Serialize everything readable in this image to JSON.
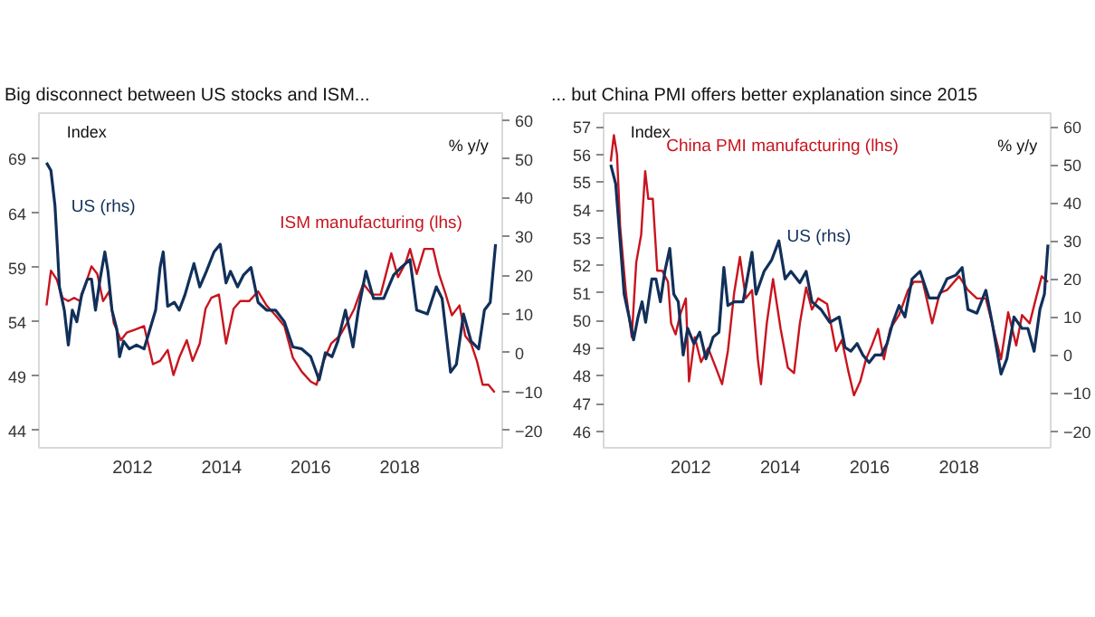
{
  "chart_data": [
    {
      "type": "line",
      "title": "Big disconnect between US stocks and ISM...",
      "ylabel": "Index",
      "y2label": "% y/y",
      "xlim": [
        2009.9,
        2020.3
      ],
      "xticks": [
        2012,
        2014,
        2016,
        2018
      ],
      "ylim": [
        42.4,
        73.2
      ],
      "yticks": [
        44,
        49,
        54,
        59,
        64,
        69
      ],
      "y2lim": [
        -24.5,
        61.8
      ],
      "y2ticks": [
        -20,
        -10,
        0,
        10,
        20,
        30,
        40,
        50,
        60
      ],
      "series": [
        {
          "name": "ISM manufacturing (lhs)",
          "color": "#c8141e",
          "x": [
            2010.07,
            2010.17,
            2010.3,
            2010.43,
            2010.56,
            2010.69,
            2010.82,
            2010.95,
            2011.08,
            2011.21,
            2011.34,
            2011.48,
            2011.58,
            2011.74,
            2011.87,
            2012.07,
            2012.26,
            2012.46,
            2012.62,
            2012.79,
            2012.92,
            2013.05,
            2013.22,
            2013.35,
            2013.51,
            2013.64,
            2013.77,
            2013.94,
            2014.1,
            2014.27,
            2014.42,
            2014.62,
            2014.82,
            2015.01,
            2015.21,
            2015.41,
            2015.6,
            2015.8,
            2016.0,
            2016.13,
            2016.29,
            2016.46,
            2016.65,
            2016.78,
            2016.98,
            2017.18,
            2017.37,
            2017.57,
            2017.81,
            2017.96,
            2018.13,
            2018.23,
            2018.38,
            2018.55,
            2018.75,
            2018.88,
            2019.01,
            2019.17,
            2019.34,
            2019.47,
            2019.6,
            2019.73,
            2019.86,
            2019.99,
            2020.13
          ],
          "values": [
            55.5,
            58.7,
            57.9,
            56.2,
            55.9,
            56.2,
            55.9,
            57.5,
            59.1,
            58.4,
            55.9,
            56.8,
            53.9,
            52.3,
            53.0,
            53.3,
            53.6,
            50.1,
            50.4,
            51.4,
            49.1,
            50.7,
            52.3,
            50.4,
            52.0,
            55.2,
            56.2,
            56.5,
            52.0,
            55.2,
            55.9,
            55.9,
            56.8,
            55.5,
            54.6,
            53.6,
            50.7,
            49.4,
            48.5,
            48.2,
            50.4,
            52.0,
            52.7,
            53.6,
            55.2,
            57.5,
            56.5,
            56.5,
            60.3,
            58.1,
            59.4,
            60.7,
            58.4,
            60.7,
            60.7,
            58.4,
            56.8,
            54.6,
            55.5,
            52.7,
            52.0,
            50.4,
            48.2,
            48.2,
            47.5
          ]
        },
        {
          "name": "US (rhs)",
          "color": "#11305a",
          "axis": "y2",
          "x": [
            2010.07,
            2010.17,
            2010.26,
            2010.32,
            2010.36,
            2010.47,
            2010.56,
            2010.65,
            2010.75,
            2010.86,
            2010.99,
            2011.08,
            2011.17,
            2011.28,
            2011.38,
            2011.45,
            2011.54,
            2011.65,
            2011.71,
            2011.8,
            2011.93,
            2012.09,
            2012.26,
            2012.39,
            2012.52,
            2012.62,
            2012.69,
            2012.79,
            2012.94,
            2013.05,
            2013.18,
            2013.38,
            2013.51,
            2013.66,
            2013.83,
            2013.97,
            2014.1,
            2014.2,
            2014.36,
            2014.49,
            2014.66,
            2014.82,
            2015.01,
            2015.21,
            2015.41,
            2015.6,
            2015.8,
            2016.0,
            2016.19,
            2016.33,
            2016.48,
            2016.61,
            2016.78,
            2016.95,
            2017.07,
            2017.24,
            2017.41,
            2017.64,
            2017.86,
            2018.03,
            2018.23,
            2018.38,
            2018.62,
            2018.82,
            2018.95,
            2019.14,
            2019.27,
            2019.43,
            2019.6,
            2019.77,
            2019.9,
            2020.03,
            2020.15
          ],
          "values": [
            49,
            47,
            38,
            26,
            17,
            11,
            2,
            11,
            8,
            15,
            19,
            19,
            11,
            19.5,
            26,
            21,
            11,
            6,
            -1,
            3,
            1,
            2,
            1,
            6,
            11,
            22,
            26,
            12,
            13,
            11,
            15,
            23,
            17,
            21,
            26,
            28,
            18,
            21,
            17,
            20,
            22,
            13,
            11,
            11,
            8,
            1.5,
            1,
            -1,
            -7,
            0,
            -1,
            3,
            11,
            1.5,
            11,
            21,
            14,
            14,
            20,
            22,
            24,
            11,
            10,
            17,
            14,
            -5,
            -3,
            10,
            3,
            1,
            11,
            13,
            28
          ]
        }
      ]
    },
    {
      "type": "line",
      "title": "... but China PMI offers better explanation since 2015",
      "ylabel": "Index",
      "y2label": "% y/y",
      "xlim": [
        2010.05,
        2020.05
      ],
      "xticks": [
        2012,
        2014,
        2016,
        2018
      ],
      "ylim": [
        45.4,
        57.5
      ],
      "yticks": [
        46,
        47,
        48,
        49,
        50,
        51,
        52,
        53,
        54,
        55,
        56,
        57
      ],
      "y2lim": [
        -24.4,
        63.6
      ],
      "y2ticks": [
        -20,
        -10,
        0,
        10,
        20,
        30,
        40,
        50,
        60
      ],
      "series": [
        {
          "name": "China PMI manufacturing (lhs)",
          "color": "#c8141e",
          "x": [
            2010.21,
            2010.28,
            2010.35,
            2010.42,
            2010.55,
            2010.68,
            2010.78,
            2010.89,
            2010.98,
            2011.05,
            2011.15,
            2011.25,
            2011.36,
            2011.49,
            2011.56,
            2011.66,
            2011.76,
            2011.89,
            2011.96,
            2012.09,
            2012.23,
            2012.39,
            2012.56,
            2012.7,
            2012.83,
            2012.97,
            2013.1,
            2013.23,
            2013.37,
            2013.5,
            2013.57,
            2013.7,
            2013.84,
            2014.01,
            2014.17,
            2014.31,
            2014.44,
            2014.58,
            2014.71,
            2014.85,
            2015.05,
            2015.25,
            2015.38,
            2015.52,
            2015.65,
            2015.79,
            2015.92,
            2016.05,
            2016.19,
            2016.32,
            2016.46,
            2016.66,
            2016.86,
            2016.99,
            2017.19,
            2017.4,
            2017.57,
            2017.73,
            2018.0,
            2018.2,
            2018.4,
            2018.6,
            2018.74,
            2018.94,
            2019.1,
            2019.28,
            2019.41,
            2019.58,
            2019.72,
            2019.85,
            2019.99
          ],
          "values": [
            55.75,
            56.7,
            56.0,
            53.4,
            51.0,
            49.4,
            52.1,
            53.1,
            55.4,
            54.4,
            54.4,
            51.8,
            51.8,
            51.4,
            49.9,
            49.5,
            50.2,
            50.8,
            47.8,
            49.4,
            48.5,
            49.0,
            48.3,
            47.7,
            48.9,
            51.0,
            52.3,
            50.8,
            51.1,
            48.6,
            47.7,
            49.9,
            51.5,
            49.7,
            48.3,
            48.1,
            49.9,
            51.2,
            50.4,
            50.8,
            50.6,
            48.9,
            49.3,
            48.2,
            47.3,
            47.8,
            48.6,
            49.1,
            49.7,
            48.6,
            49.7,
            50.2,
            51.1,
            51.4,
            51.4,
            49.9,
            51.0,
            51.1,
            51.6,
            51.1,
            50.8,
            50.8,
            49.9,
            48.6,
            50.3,
            49.1,
            50.2,
            49.9,
            50.8,
            51.6,
            51.4
          ]
        },
        {
          "name": "US (rhs)",
          "color": "#11305a",
          "axis": "y2",
          "x": [
            2010.21,
            2010.32,
            2010.42,
            2010.51,
            2010.62,
            2010.72,
            2010.82,
            2010.91,
            2010.99,
            2011.13,
            2011.22,
            2011.32,
            2011.42,
            2011.53,
            2011.62,
            2011.72,
            2011.83,
            2011.93,
            2012.07,
            2012.2,
            2012.34,
            2012.5,
            2012.63,
            2012.74,
            2012.83,
            2012.97,
            2013.17,
            2013.37,
            2013.46,
            2013.64,
            2013.81,
            2013.97,
            2014.11,
            2014.24,
            2014.44,
            2014.58,
            2014.71,
            2014.91,
            2015.11,
            2015.32,
            2015.45,
            2015.58,
            2015.72,
            2015.85,
            2015.99,
            2016.12,
            2016.26,
            2016.39,
            2016.52,
            2016.66,
            2016.79,
            2016.95,
            2017.13,
            2017.33,
            2017.53,
            2017.73,
            2017.93,
            2018.07,
            2018.2,
            2018.4,
            2018.6,
            2018.74,
            2018.94,
            2019.07,
            2019.23,
            2019.41,
            2019.54,
            2019.68,
            2019.81,
            2019.91,
            2019.99
          ],
          "values": [
            50,
            45,
            30,
            16,
            10,
            4,
            10,
            14,
            8.6,
            20,
            20,
            14,
            22,
            28,
            16,
            14,
            0,
            7,
            3,
            6,
            -1,
            4.7,
            6,
            23,
            13,
            14,
            14,
            27,
            16,
            22,
            25,
            30,
            20,
            22,
            19,
            22,
            14,
            12,
            8.6,
            10,
            2,
            1,
            3,
            0,
            -2,
            0,
            0,
            3,
            8.6,
            13,
            10,
            20,
            22,
            15,
            15,
            20,
            21,
            23,
            12,
            11,
            17,
            8.6,
            -5,
            -1,
            10,
            7,
            7,
            1,
            12,
            16,
            29
          ]
        }
      ]
    }
  ]
}
